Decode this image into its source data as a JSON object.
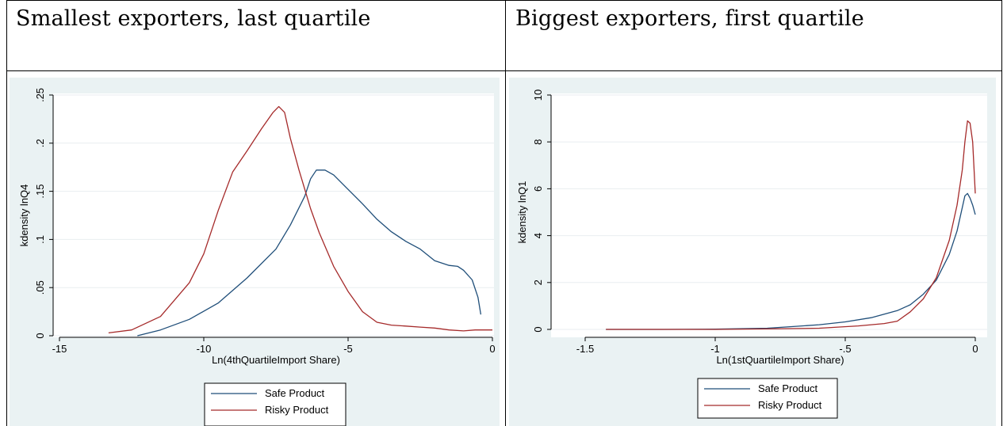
{
  "headers": {
    "left": "Smallest exporters, last quartile",
    "right": "Biggest exporters, first quartile"
  },
  "colors": {
    "safe": "#1f4e79",
    "risky": "#a52a2a",
    "panel_bg": "#eaf2f3",
    "plot_bg": "#ffffff",
    "grid": "#e9eef0"
  },
  "chart_data": [
    {
      "type": "line",
      "title": "",
      "xlabel": "Ln(4thQuartileImport Share)",
      "ylabel": "kdensity lnQ4",
      "xlim": [
        -15,
        0
      ],
      "ylim": [
        0,
        0.25
      ],
      "xticks": [
        -15,
        -10,
        -5,
        0
      ],
      "xtick_labels": [
        "-15",
        "-10",
        "-5",
        "0"
      ],
      "yticks": [
        0,
        0.05,
        0.1,
        0.15,
        0.2,
        0.25
      ],
      "ytick_labels": [
        "0",
        ".05",
        ".1",
        ".15",
        ".2",
        ".25"
      ],
      "grid": true,
      "legend_position": "bottom",
      "series": [
        {
          "name": "Safe Product",
          "color_key": "safe",
          "x": [
            -12.3,
            -11.5,
            -10.5,
            -9.5,
            -8.5,
            -7.5,
            -7,
            -6.5,
            -6.3,
            -6.1,
            -5.8,
            -5.5,
            -5,
            -4.5,
            -4,
            -3.5,
            -3,
            -2.5,
            -2,
            -1.5,
            -1.2,
            -1,
            -0.7,
            -0.5,
            -0.4
          ],
          "y": [
            0,
            0.006,
            0.017,
            0.034,
            0.06,
            0.09,
            0.115,
            0.145,
            0.163,
            0.172,
            0.172,
            0.167,
            0.152,
            0.137,
            0.121,
            0.108,
            0.098,
            0.09,
            0.078,
            0.073,
            0.072,
            0.068,
            0.058,
            0.04,
            0.022
          ]
        },
        {
          "name": "Risky Product",
          "color_key": "risky",
          "x": [
            -13.3,
            -12.5,
            -11.5,
            -10.5,
            -10,
            -9.5,
            -9,
            -8.5,
            -8,
            -7.6,
            -7.4,
            -7.2,
            -7,
            -6.7,
            -6.3,
            -6,
            -5.5,
            -5,
            -4.5,
            -4,
            -3.5,
            -3,
            -2.5,
            -2,
            -1.5,
            -1,
            -0.6,
            0
          ],
          "y": [
            0.003,
            0.006,
            0.02,
            0.055,
            0.085,
            0.13,
            0.17,
            0.192,
            0.215,
            0.232,
            0.238,
            0.232,
            0.205,
            0.172,
            0.132,
            0.107,
            0.072,
            0.046,
            0.025,
            0.014,
            0.011,
            0.01,
            0.009,
            0.008,
            0.006,
            0.005,
            0.006,
            0.006
          ]
        }
      ]
    },
    {
      "type": "line",
      "title": "",
      "xlabel": "Ln(1stQuartileImport Share)",
      "ylabel": "kdensity lnQ1",
      "xlim": [
        -1.5,
        0
      ],
      "ylim": [
        0,
        10
      ],
      "xticks": [
        -1.5,
        -1,
        -0.5,
        0
      ],
      "xtick_labels": [
        "-1.5",
        "-1",
        "-.5",
        "0"
      ],
      "yticks": [
        0,
        2,
        4,
        6,
        8,
        10
      ],
      "ytick_labels": [
        "0",
        "2",
        "4",
        "6",
        "8",
        "10"
      ],
      "grid": true,
      "legend_position": "bottom",
      "series": [
        {
          "name": "Safe Product",
          "color_key": "safe",
          "x": [
            -1.42,
            -1.2,
            -1,
            -0.8,
            -0.7,
            -0.6,
            -0.5,
            -0.4,
            -0.3,
            -0.25,
            -0.2,
            -0.15,
            -0.1,
            -0.07,
            -0.05,
            -0.04,
            -0.03,
            -0.02,
            -0.01,
            0
          ],
          "y": [
            0,
            0,
            0.01,
            0.05,
            0.12,
            0.2,
            0.32,
            0.5,
            0.8,
            1.05,
            1.5,
            2.1,
            3.2,
            4.2,
            5.2,
            5.7,
            5.8,
            5.6,
            5.3,
            4.9
          ]
        },
        {
          "name": "Risky Product",
          "color_key": "risky",
          "x": [
            -1.42,
            -1.2,
            -1,
            -0.8,
            -0.6,
            -0.45,
            -0.35,
            -0.3,
            -0.25,
            -0.2,
            -0.15,
            -0.1,
            -0.07,
            -0.05,
            -0.04,
            -0.03,
            -0.02,
            -0.01,
            0
          ],
          "y": [
            0,
            0,
            0,
            0.02,
            0.05,
            0.15,
            0.25,
            0.35,
            0.75,
            1.3,
            2.2,
            3.8,
            5.3,
            6.8,
            8,
            8.9,
            8.8,
            8,
            5.8
          ]
        }
      ]
    }
  ]
}
